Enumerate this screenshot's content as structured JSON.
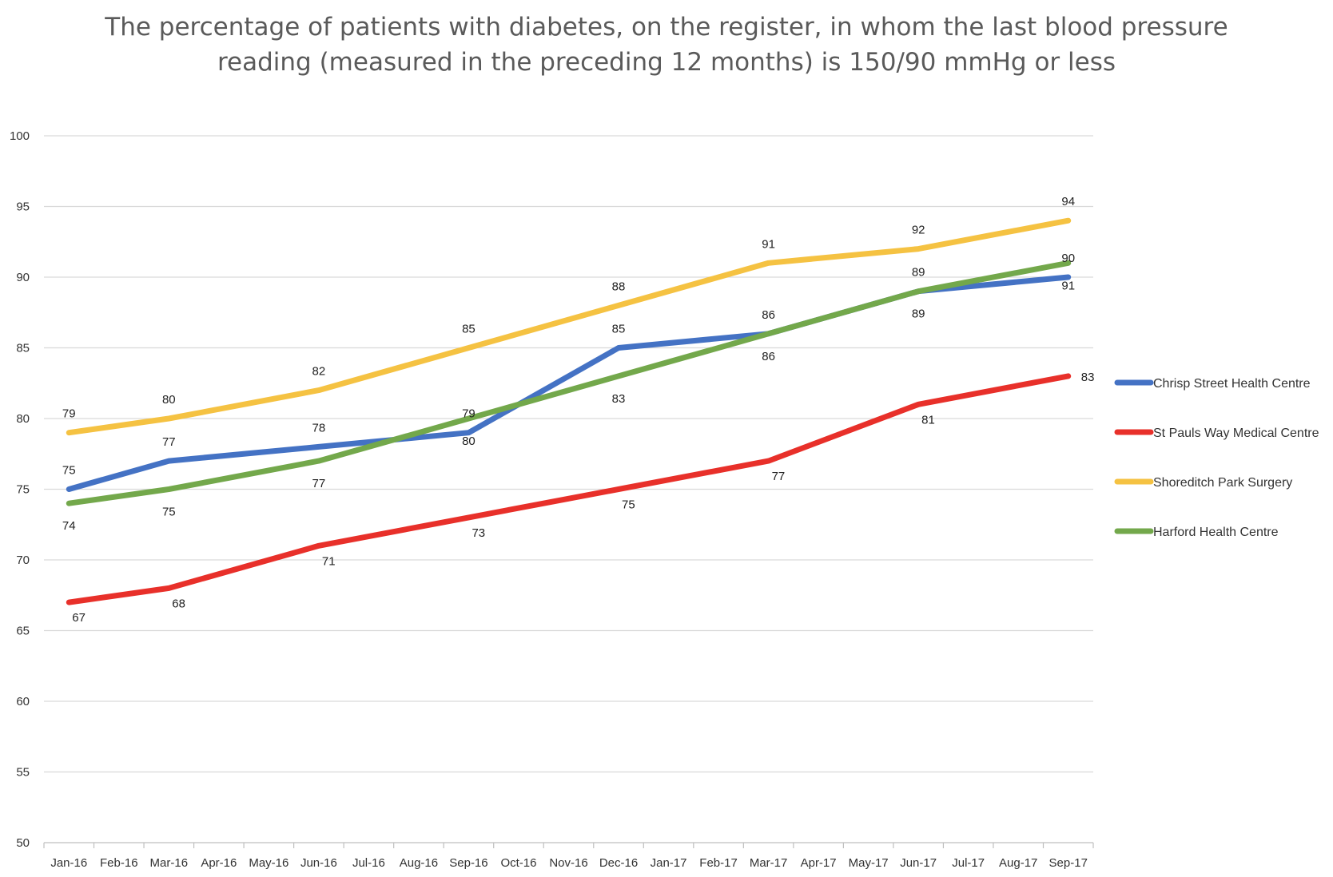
{
  "chart_data": {
    "type": "line",
    "title": "The percentage of patients with diabetes, on the register, in whom the last blood pressure",
    "subtitle": "reading (measured in the preceding 12 months) is 150/90 mmHg or less",
    "xlabel": "",
    "ylabel": "",
    "ylim": [
      50,
      100
    ],
    "yticks": [
      "50",
      "55",
      "60",
      "65",
      "70",
      "75",
      "80",
      "85",
      "90",
      "95",
      "100"
    ],
    "categories": [
      "Jan-16",
      "Feb-16",
      "Mar-16",
      "Apr-16",
      "May-16",
      "Jun-16",
      "Jul-16",
      "Aug-16",
      "Sep-16",
      "Oct-16",
      "Nov-16",
      "Dec-16",
      "Jan-17",
      "Feb-17",
      "Mar-17",
      "Apr-17",
      "May-17",
      "Jun-17",
      "Jul-17",
      "Aug-17",
      "Sep-17"
    ],
    "grid": true,
    "legend_position": "right",
    "series": [
      {
        "name": "Chrisp Street Health Centre",
        "color": "#4472C4",
        "points": [
          {
            "x": "Jan-16",
            "y": 75,
            "label": "75",
            "pos": "above"
          },
          {
            "x": "Mar-16",
            "y": 77,
            "label": "77",
            "pos": "above"
          },
          {
            "x": "Jun-16",
            "y": 78,
            "label": "78",
            "pos": "above"
          },
          {
            "x": "Sep-16",
            "y": 79,
            "label": "79",
            "pos": "above"
          },
          {
            "x": "Dec-16",
            "y": 85,
            "label": "85",
            "pos": "above"
          },
          {
            "x": "Mar-17",
            "y": 86,
            "label": "86",
            "pos": "above"
          },
          {
            "x": "Jun-17",
            "y": 89,
            "label": "89",
            "pos": "below"
          },
          {
            "x": "Sep-17",
            "y": 90,
            "label": "90",
            "pos": "above"
          }
        ]
      },
      {
        "name": "St Pauls Way Medical Centre",
        "color": "#E8302A",
        "points": [
          {
            "x": "Jan-16",
            "y": 67,
            "label": "67",
            "pos": "below-right"
          },
          {
            "x": "Mar-16",
            "y": 68,
            "label": "68",
            "pos": "below-right"
          },
          {
            "x": "Jun-16",
            "y": 71,
            "label": "71",
            "pos": "below-right"
          },
          {
            "x": "Sep-16",
            "y": 73,
            "label": "73",
            "pos": "below-right"
          },
          {
            "x": "Dec-16",
            "y": 75,
            "label": "75",
            "pos": "below-right"
          },
          {
            "x": "Mar-17",
            "y": 77,
            "label": "77",
            "pos": "below-right"
          },
          {
            "x": "Jun-17",
            "y": 81,
            "label": "81",
            "pos": "below-right"
          },
          {
            "x": "Sep-17",
            "y": 83,
            "label": "83",
            "pos": "right"
          }
        ]
      },
      {
        "name": "Shoreditch Park Surgery",
        "color": "#F5C242",
        "points": [
          {
            "x": "Jan-16",
            "y": 79,
            "label": "79",
            "pos": "above"
          },
          {
            "x": "Mar-16",
            "y": 80,
            "label": "80",
            "pos": "above"
          },
          {
            "x": "Jun-16",
            "y": 82,
            "label": "82",
            "pos": "above"
          },
          {
            "x": "Sep-16",
            "y": 85,
            "label": "85",
            "pos": "above"
          },
          {
            "x": "Dec-16",
            "y": 88,
            "label": "88",
            "pos": "above"
          },
          {
            "x": "Mar-17",
            "y": 91,
            "label": "91",
            "pos": "above"
          },
          {
            "x": "Jun-17",
            "y": 92,
            "label": "92",
            "pos": "above"
          },
          {
            "x": "Sep-17",
            "y": 94,
            "label": "94",
            "pos": "above"
          }
        ]
      },
      {
        "name": "Harford Health Centre",
        "color": "#73A84B",
        "points": [
          {
            "x": "Jan-16",
            "y": 74,
            "label": "74",
            "pos": "below"
          },
          {
            "x": "Mar-16",
            "y": 75,
            "label": "75",
            "pos": "below"
          },
          {
            "x": "Jun-16",
            "y": 77,
            "label": "77",
            "pos": "below"
          },
          {
            "x": "Sep-16",
            "y": 80,
            "label": "80",
            "pos": "below"
          },
          {
            "x": "Dec-16",
            "y": 83,
            "label": "83",
            "pos": "below"
          },
          {
            "x": "Mar-17",
            "y": 86,
            "label": "86",
            "pos": "below"
          },
          {
            "x": "Jun-17",
            "y": 89,
            "label": "89",
            "pos": "above"
          },
          {
            "x": "Sep-17",
            "y": 91,
            "label": "91",
            "pos": "below"
          }
        ]
      }
    ]
  }
}
